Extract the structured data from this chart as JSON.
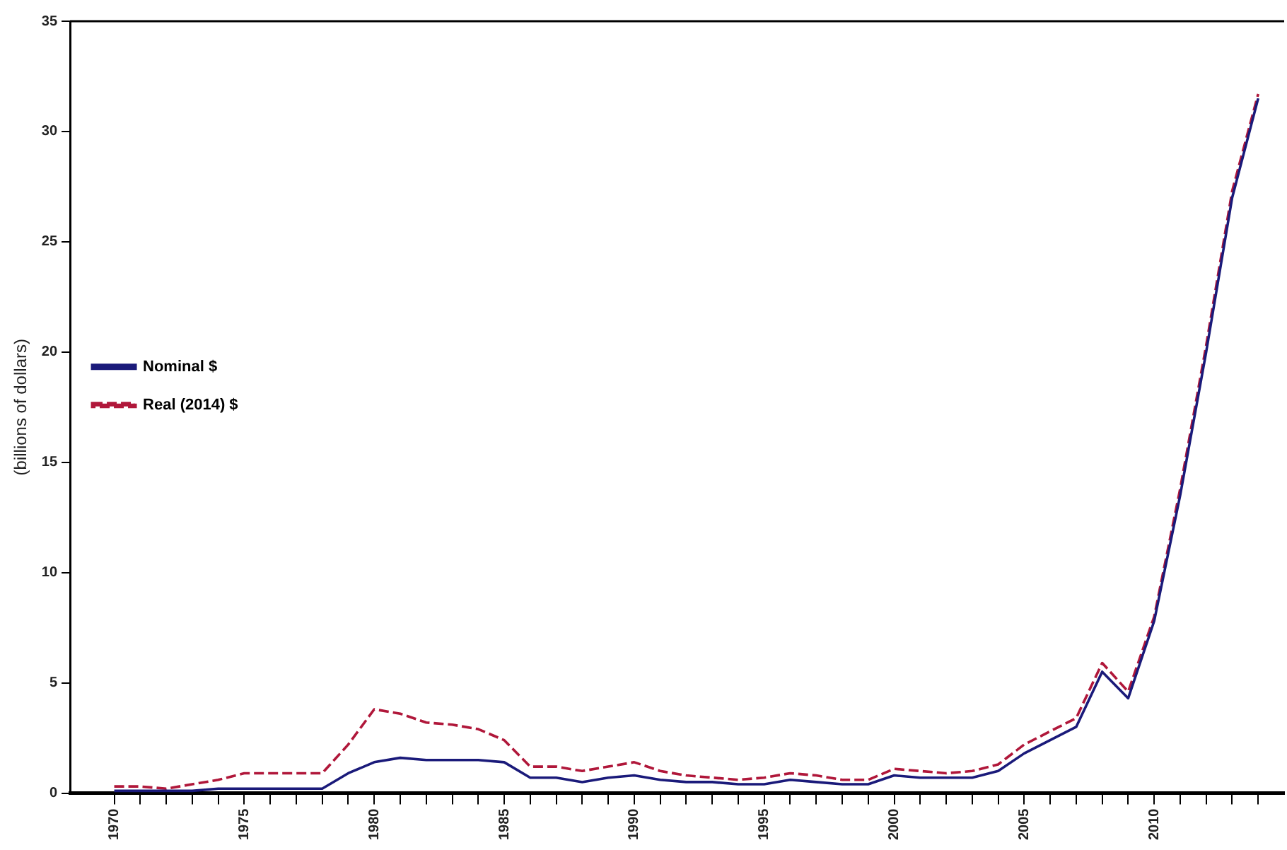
{
  "chart_data": {
    "type": "line",
    "ylabel": "(billions of dollars)",
    "x": [
      1970,
      1971,
      1972,
      1973,
      1974,
      1975,
      1976,
      1977,
      1978,
      1979,
      1980,
      1981,
      1982,
      1983,
      1984,
      1985,
      1986,
      1987,
      1988,
      1989,
      1990,
      1991,
      1992,
      1993,
      1994,
      1995,
      1996,
      1997,
      1998,
      1999,
      2000,
      2001,
      2002,
      2003,
      2004,
      2005,
      2006,
      2007,
      2008,
      2009,
      2010,
      2011,
      2012,
      2013,
      2014
    ],
    "series": [
      {
        "name": "Nominal $",
        "color": "#1a1a7a",
        "line_style": "solid",
        "values": [
          0.1,
          0.1,
          0.1,
          0.1,
          0.2,
          0.2,
          0.2,
          0.2,
          0.2,
          0.9,
          1.4,
          1.6,
          1.5,
          1.5,
          1.5,
          1.4,
          0.7,
          0.7,
          0.5,
          0.7,
          0.8,
          0.6,
          0.5,
          0.5,
          0.4,
          0.4,
          0.6,
          0.5,
          0.4,
          0.4,
          0.8,
          0.7,
          0.7,
          0.7,
          1.0,
          1.8,
          2.4,
          3.0,
          5.5,
          4.3,
          7.8,
          13.5,
          20,
          27,
          31.5
        ]
      },
      {
        "name": "Real (2014) $",
        "color": "#b0173a",
        "line_style": "dashed",
        "values": [
          0.3,
          0.3,
          0.2,
          0.4,
          0.6,
          0.9,
          0.9,
          0.9,
          0.9,
          2.2,
          3.8,
          3.6,
          3.2,
          3.1,
          2.9,
          2.4,
          1.2,
          1.2,
          1.0,
          1.2,
          1.4,
          1.0,
          0.8,
          0.7,
          0.6,
          0.7,
          0.9,
          0.8,
          0.6,
          0.6,
          1.1,
          1.0,
          0.9,
          1.0,
          1.3,
          2.2,
          2.8,
          3.4,
          5.9,
          4.6,
          8.0,
          13.8,
          20.3,
          27.3,
          31.7
        ]
      }
    ],
    "xlim": [
      1968.3,
      2015
    ],
    "xticks": [
      1970,
      {
        "value": 1971,
        "label": null
      },
      {
        "value": 1972,
        "label": null
      },
      {
        "value": 1973,
        "label": null
      },
      {
        "value": 1974,
        "label": null
      },
      1975,
      {
        "value": 1976,
        "label": null
      },
      {
        "value": 1977,
        "label": null
      },
      {
        "value": 1978,
        "label": null
      },
      {
        "value": 1979,
        "label": null
      },
      1980,
      {
        "value": 1981,
        "label": null
      },
      {
        "value": 1982,
        "label": null
      },
      {
        "value": 1983,
        "label": null
      },
      {
        "value": 1984,
        "label": null
      },
      1985,
      {
        "value": 1986,
        "label": null
      },
      {
        "value": 1987,
        "label": null
      },
      {
        "value": 1988,
        "label": null
      },
      {
        "value": 1989,
        "label": null
      },
      1990,
      {
        "value": 1991,
        "label": null
      },
      {
        "value": 1992,
        "label": null
      },
      {
        "value": 1993,
        "label": null
      },
      {
        "value": 1994,
        "label": null
      },
      1995,
      {
        "value": 1996,
        "label": null
      },
      {
        "value": 1997,
        "label": null
      },
      {
        "value": 1998,
        "label": null
      },
      {
        "value": 1999,
        "label": null
      },
      2000,
      {
        "value": 2001,
        "label": null
      },
      {
        "value": 2002,
        "label": null
      },
      {
        "value": 2003,
        "label": null
      },
      {
        "value": 2004,
        "label": null
      },
      2005,
      {
        "value": 2006,
        "label": null
      },
      {
        "value": 2007,
        "label": null
      },
      {
        "value": 2008,
        "label": null
      },
      {
        "value": 2009,
        "label": null
      },
      2010,
      {
        "value": 2011,
        "label": null
      },
      {
        "value": 2012,
        "label": null
      },
      {
        "value": 2013,
        "label": null
      },
      {
        "value": 2014,
        "label": null
      }
    ],
    "ylim": [
      0,
      35
    ],
    "yticks": [
      0,
      5,
      10,
      15,
      20,
      25,
      30,
      35
    ],
    "grid": false,
    "legend": "top",
    "marker": "none"
  }
}
